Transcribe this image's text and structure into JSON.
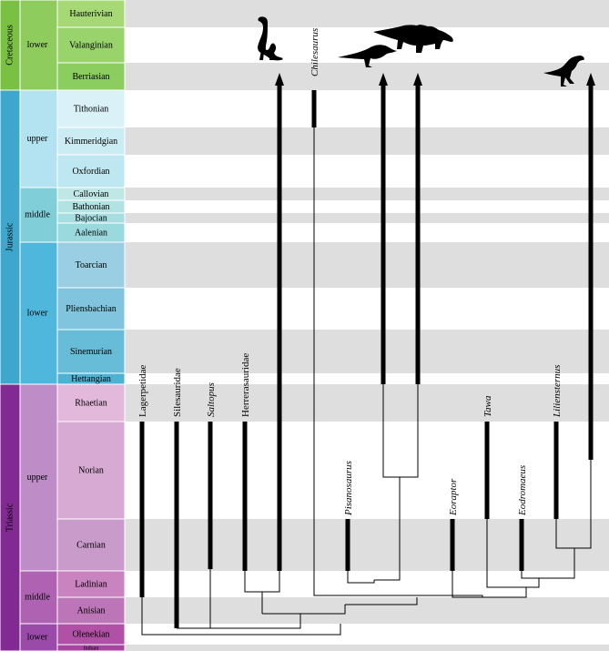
{
  "colors": {
    "cretaceous": "#7ac143",
    "jurassic": "#3fa6cc",
    "triassic": "#812b92",
    "band_gray": "#dedede",
    "line": "#000000"
  },
  "periods": [
    {
      "name": "Cretaceous",
      "color": "#7ac143"
    },
    {
      "name": "Jurassic",
      "color": "#3fa6cc"
    },
    {
      "name": "Triassic",
      "color": "#812b92"
    }
  ],
  "epochs": [
    {
      "name": "lower",
      "period": "Cretaceous",
      "color": "#8fcc5e"
    },
    {
      "name": "upper",
      "period": "Jurassic",
      "color": "#b3e2f0"
    },
    {
      "name": "middle",
      "period": "Jurassic",
      "color": "#80cfd8"
    },
    {
      "name": "lower",
      "period": "Jurassic",
      "color": "#4fb6dc"
    },
    {
      "name": "upper",
      "period": "Triassic",
      "color": "#be8cc6"
    },
    {
      "name": "middle",
      "period": "Triassic",
      "color": "#b062b2"
    },
    {
      "name": "lower",
      "period": "Triassic",
      "color": "#9a4aa8"
    }
  ],
  "stages": [
    {
      "name": "Hauterivian",
      "color": "#a6d975",
      "gray": true
    },
    {
      "name": "Valanginian",
      "color": "#99d36b",
      "gray": false
    },
    {
      "name": "Berriasian",
      "color": "#8ccd60",
      "gray": true
    },
    {
      "name": "Tithonian",
      "color": "#d9f1f7",
      "gray": false
    },
    {
      "name": "Kimmeridgian",
      "color": "#ccecf4",
      "gray": true
    },
    {
      "name": "Oxfordian",
      "color": "#bfe7f1",
      "gray": false
    },
    {
      "name": "Callovian",
      "color": "#bfe7e5",
      "gray": true
    },
    {
      "name": "Bathonian",
      "color": "#b3e2e3",
      "gray": false
    },
    {
      "name": "Bajocian",
      "color": "#a6dde0",
      "gray": true
    },
    {
      "name": "Aalenian",
      "color": "#9ad9dd",
      "gray": false
    },
    {
      "name": "Toarcian",
      "color": "#99cee3",
      "gray": true
    },
    {
      "name": "Pliensbachian",
      "color": "#80c5dd",
      "gray": false
    },
    {
      "name": "Sinemurian",
      "color": "#67bcd8",
      "gray": true
    },
    {
      "name": "Hettangian",
      "color": "#4eb3d3",
      "gray": false
    },
    {
      "name": "Rhaetian",
      "color": "#e3b9db",
      "gray": true
    },
    {
      "name": "Norian",
      "color": "#d6aad3",
      "gray": false
    },
    {
      "name": "Carnian",
      "color": "#c99bcb",
      "gray": true
    },
    {
      "name": "Ladinian",
      "color": "#c983bf",
      "gray": false
    },
    {
      "name": "Anisian",
      "color": "#bc75b7",
      "gray": true
    },
    {
      "name": "Olenekian",
      "color": "#b051a5",
      "gray": false
    },
    {
      "name": "Induan",
      "color": "#a4469f",
      "gray": true
    }
  ],
  "taxa": [
    {
      "name": "Lagerpetidae",
      "italic": false,
      "range": [
        "Ladinian",
        "Carnian"
      ]
    },
    {
      "name": "Silesauridae",
      "italic": false,
      "range": [
        "Anisian",
        "Norian"
      ]
    },
    {
      "name": "Saltopus",
      "italic": true,
      "range": [
        "Ladinian",
        "Carnian"
      ]
    },
    {
      "name": "Herrerasauridae",
      "italic": false,
      "range": [
        "Ladinian",
        "Norian"
      ]
    },
    {
      "name": "Chilesaurus",
      "italic": true,
      "range": [
        "Tithonian",
        "Tithonian"
      ]
    },
    {
      "name": "Pisanosaurus",
      "italic": true,
      "range": [
        "Carnian",
        "Carnian"
      ]
    },
    {
      "name": "Eoraptor",
      "italic": true,
      "range": [
        "Carnian",
        "Carnian"
      ]
    },
    {
      "name": "Tawa",
      "italic": true,
      "range": [
        "Norian",
        "Norian"
      ]
    },
    {
      "name": "Eodromaeus",
      "italic": true,
      "range": [
        "Carnian",
        "Carnian"
      ]
    },
    {
      "name": "Liliensternus",
      "italic": true,
      "range": [
        "Norian",
        "Norian"
      ]
    }
  ],
  "silhouettes": [
    {
      "icon": "sauropodomorph-silhouette-icon"
    },
    {
      "icon": "ornithopod-silhouette-icon"
    },
    {
      "icon": "thyreophoran-silhouette-icon"
    },
    {
      "icon": "theropod-silhouette-icon"
    }
  ]
}
